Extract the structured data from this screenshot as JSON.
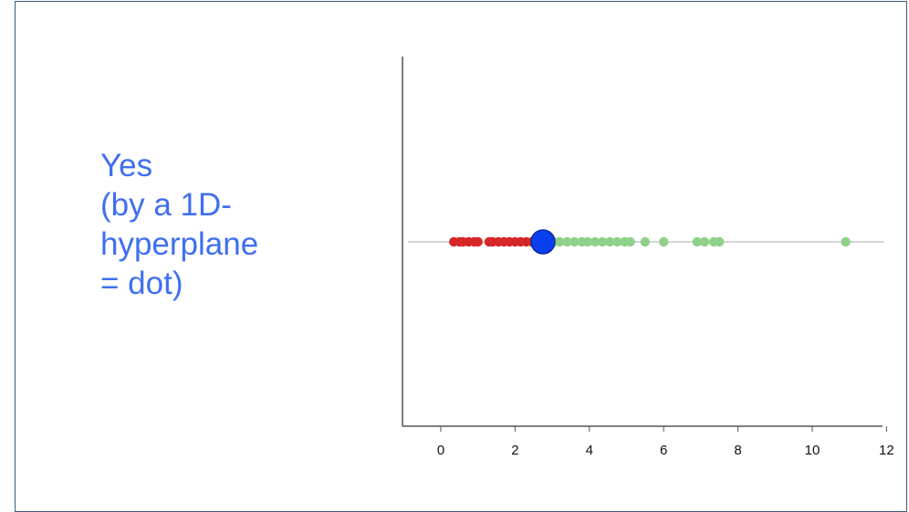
{
  "caption": {
    "lines": [
      "Yes",
      "(by a 1D-",
      "hyperplane",
      "= dot)"
    ]
  },
  "chart_data": {
    "type": "scatter",
    "title": "",
    "xlabel": "",
    "ylabel": "",
    "xlim": [
      -1,
      12
    ],
    "x_ticks": [
      0,
      2,
      4,
      6,
      8,
      10,
      12
    ],
    "grid": false,
    "series": [
      {
        "color": "#d62728",
        "x": [
          0.35,
          0.5,
          0.6,
          0.75,
          0.9,
          1.0,
          1.3,
          1.4,
          1.55,
          1.7,
          1.85,
          2.0,
          2.15,
          2.3,
          2.45
        ]
      },
      {
        "color": "#8fd18a",
        "x": [
          3.05,
          3.2,
          3.4,
          3.6,
          3.8,
          3.95,
          4.15,
          4.35,
          4.55,
          4.75,
          4.95,
          5.1,
          5.5,
          6.0,
          6.9,
          7.1,
          7.35,
          7.5,
          10.9
        ]
      }
    ],
    "separator": {
      "x": 2.75,
      "color": "#0a3ff0"
    },
    "colors": {
      "axis": "#555555",
      "baseline": "#aaaaaa",
      "caption": "#3f6ff0"
    }
  }
}
